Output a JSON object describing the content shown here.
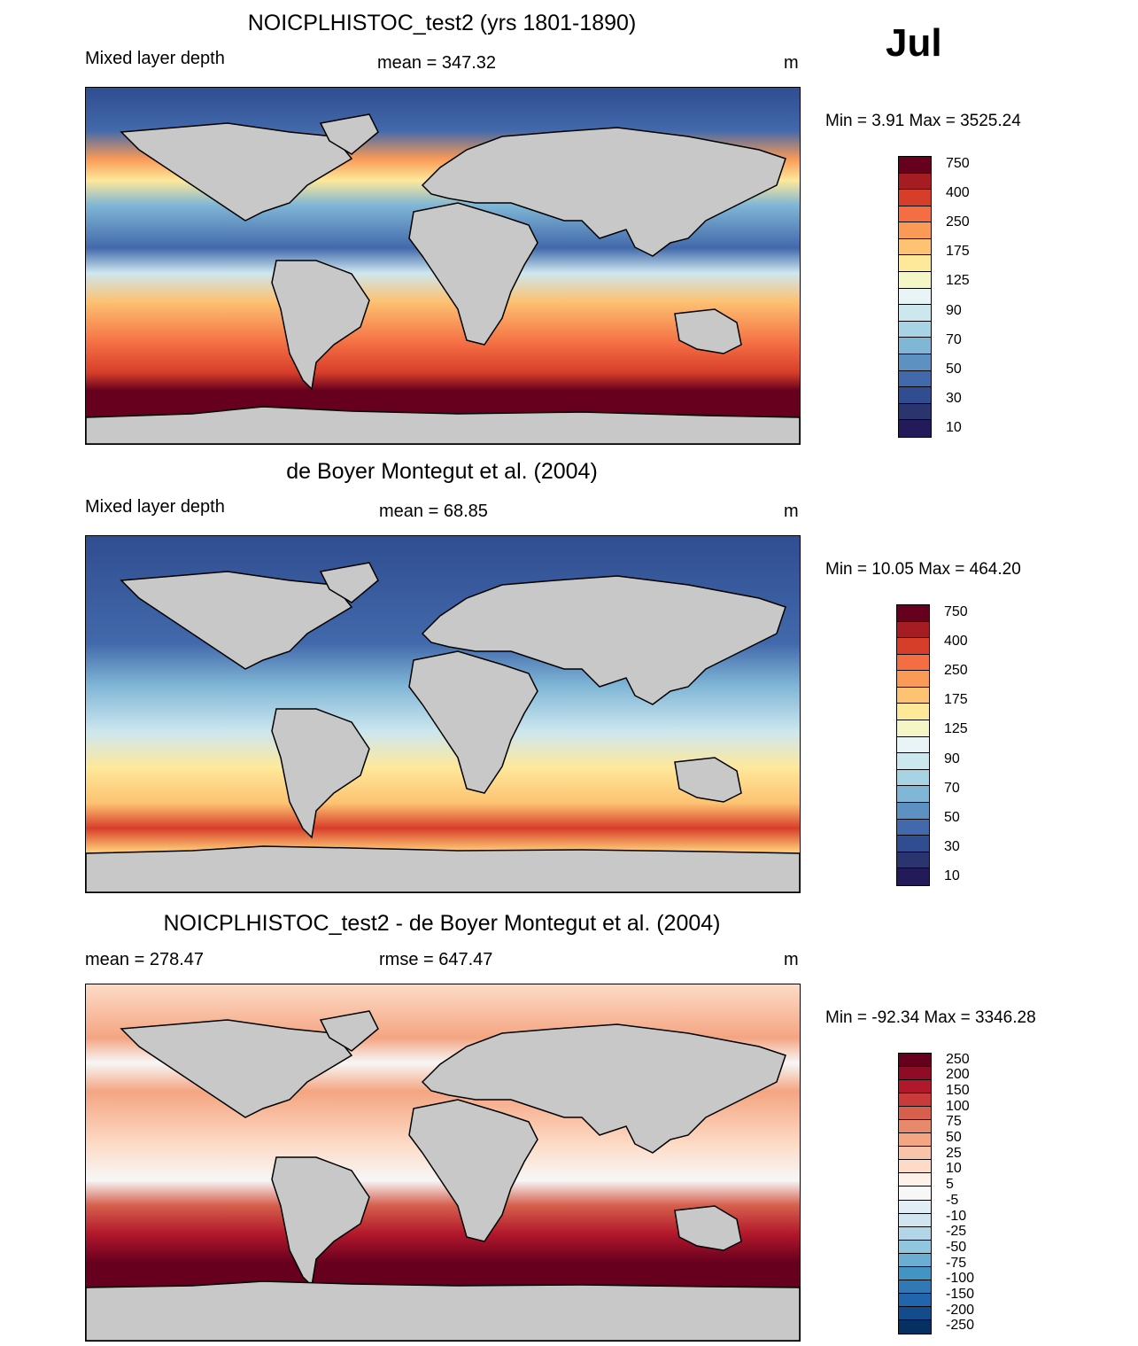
{
  "month": "Jul",
  "unit_label": "m",
  "panels": [
    {
      "title": "NOICPLHISTOC_test2 (yrs 1801-1890)",
      "left_label": "Mixed layer depth",
      "center_label": "mean = 347.32",
      "right_label": "m",
      "stats": "Min =   3.91 Max = 3525.24",
      "colorbar_labels": [
        "750",
        "400",
        "250",
        "175",
        "125",
        "90",
        "70",
        "50",
        "30",
        "10"
      ],
      "colorbar_colors": [
        "#67001f",
        "#a51d23",
        "#d73e2a",
        "#f46d43",
        "#f99a57",
        "#fdc272",
        "#fee89a",
        "#f5f6c6",
        "#e8f4f6",
        "#cde7ef",
        "#a7d3e5",
        "#80b6d6",
        "#5c91c2",
        "#4269ab",
        "#304d91",
        "#2a3570",
        "#231a59"
      ]
    },
    {
      "title": "de Boyer Montegut et al. (2004)",
      "left_label": "Mixed layer depth",
      "center_label": "mean =  68.85",
      "right_label": "m",
      "stats": "Min =  10.05 Max = 464.20",
      "colorbar_labels": [
        "750",
        "400",
        "250",
        "175",
        "125",
        "90",
        "70",
        "50",
        "30",
        "10"
      ],
      "colorbar_colors": [
        "#67001f",
        "#a51d23",
        "#d73e2a",
        "#f46d43",
        "#f99a57",
        "#fdc272",
        "#fee89a",
        "#f5f6c6",
        "#e8f4f6",
        "#cde7ef",
        "#a7d3e5",
        "#80b6d6",
        "#5c91c2",
        "#4269ab",
        "#304d91",
        "#2a3570",
        "#231a59"
      ]
    },
    {
      "title": "NOICPLHISTOC_test2 - de Boyer Montegut et al. (2004)",
      "left_label": "mean = 278.47",
      "center_label": "rmse = 647.47",
      "right_label": "m",
      "stats": "Min = -92.34 Max = 3346.28",
      "colorbar_labels": [
        "250",
        "200",
        "150",
        "100",
        "75",
        "50",
        "25",
        "10",
        "5",
        "-5",
        "-10",
        "-25",
        "-50",
        "-75",
        "-100",
        "-150",
        "-200",
        "-250"
      ],
      "colorbar_colors": [
        "#67001f",
        "#8e0c25",
        "#b2182b",
        "#c93a3a",
        "#d6604d",
        "#e8896c",
        "#f4a582",
        "#f8c5ab",
        "#fddbc7",
        "#fdf1ea",
        "#f7f7f7",
        "#e2eef5",
        "#d1e5f0",
        "#b3d5e8",
        "#92c5de",
        "#6aaed3",
        "#4393c3",
        "#2f79b5",
        "#2166ac",
        "#134c8c",
        "#053061"
      ]
    }
  ],
  "colors": {
    "land": "#c8c8c8",
    "coast": "#000000"
  }
}
